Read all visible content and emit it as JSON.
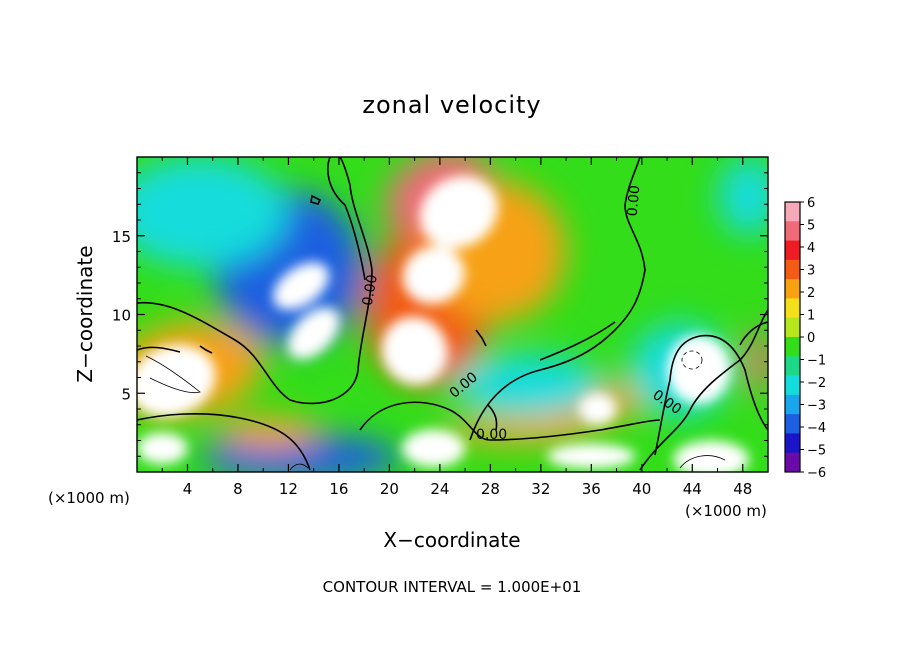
{
  "chart_data": {
    "type": "heatmap",
    "title": "zonal velocity",
    "xlabel": "X−coordinate",
    "ylabel": "Z−coordinate",
    "x_units_left": "(×1000 m)",
    "x_units_right": "(×1000 m)",
    "footer": "CONTOUR INTERVAL = 1.000E+01",
    "xlim": [
      0,
      50
    ],
    "ylim": [
      0,
      20
    ],
    "x_ticks": [
      4,
      8,
      12,
      16,
      20,
      24,
      28,
      32,
      36,
      40,
      44,
      48
    ],
    "x_tick_labels": [
      "4",
      "8",
      "12",
      "16",
      "20",
      "24",
      "28",
      "32",
      "36",
      "40",
      "44",
      "48"
    ],
    "y_ticks": [
      5,
      10,
      15
    ],
    "y_tick_labels": [
      "5",
      "10",
      "15"
    ],
    "colorbar": {
      "min": -6,
      "max": 6,
      "ticks": [
        6,
        5,
        4,
        3,
        2,
        1,
        0,
        -1,
        -2,
        -3,
        -4,
        -5,
        -6
      ],
      "labels": [
        "6",
        "5",
        "4",
        "3",
        "2",
        "1",
        "0",
        "−1",
        "−2",
        "−3",
        "−4",
        "−5",
        "−6"
      ],
      "colors": [
        "#f4a8b8",
        "#f06a7a",
        "#ee1c24",
        "#f25c18",
        "#f7a113",
        "#f3df1a",
        "#b5e51d",
        "#33dd1a",
        "#1ed88a",
        "#14dcdc",
        "#1aa6ec",
        "#1e5ee0",
        "#1c14c8",
        "#6a0aa8"
      ]
    },
    "contour_labels": [
      {
        "text": "0.00",
        "x": 18.8,
        "z": 11.5,
        "rotate": -80
      },
      {
        "text": "0.00",
        "x": 26.1,
        "z": 5.3,
        "rotate": -40
      },
      {
        "text": "0.00",
        "x": 28.1,
        "z": 2.1,
        "rotate": 0
      },
      {
        "text": "0.00",
        "x": 41.8,
        "z": 4.2,
        "rotate": 35
      },
      {
        "text": "0.00",
        "x": 39.7,
        "z": 17.2,
        "rotate": -85
      }
    ],
    "features": [
      {
        "type": "blob",
        "x": 25.5,
        "z": 16.5,
        "rx": 3.2,
        "rz": 2.2,
        "angle": 30,
        "value": 6.5
      },
      {
        "type": "blob",
        "x": 24.0,
        "z": 17.5,
        "rx": 4.5,
        "rz": 2.8,
        "angle": 30,
        "value": 4.5
      },
      {
        "type": "blob",
        "x": 23.5,
        "z": 12.5,
        "rx": 2.5,
        "rz": 1.8,
        "angle": 20,
        "value": 6.5
      },
      {
        "type": "blob",
        "x": 22.0,
        "z": 7.7,
        "rx": 2.6,
        "rz": 2.2,
        "angle": 30,
        "value": 6.5
      },
      {
        "type": "blob",
        "x": 23.0,
        "z": 10.5,
        "rx": 5.0,
        "rz": 5.0,
        "angle": 0,
        "value": 3.2
      },
      {
        "type": "blob",
        "x": 28.5,
        "z": 14.0,
        "rx": 5.5,
        "rz": 4.5,
        "angle": 0,
        "value": 2.5
      },
      {
        "type": "blob",
        "x": 13.0,
        "z": 11.8,
        "rx": 2.5,
        "rz": 1.2,
        "angle": 35,
        "value": -6.5
      },
      {
        "type": "blob",
        "x": 14.0,
        "z": 8.8,
        "rx": 2.5,
        "rz": 1.2,
        "angle": 45,
        "value": -6.5
      },
      {
        "type": "blob",
        "x": 12.0,
        "z": 13.0,
        "rx": 6.0,
        "rz": 5.0,
        "angle": 30,
        "value": -3.5
      },
      {
        "type": "blob",
        "x": 5.0,
        "z": 16.5,
        "rx": 7.0,
        "rz": 3.5,
        "angle": 0,
        "value": -2.5
      },
      {
        "type": "blob",
        "x": 2.8,
        "z": 5.8,
        "rx": 3.5,
        "rz": 2.2,
        "angle": 20,
        "value": 6.5
      },
      {
        "type": "blob",
        "x": 4.0,
        "z": 6.5,
        "rx": 6.0,
        "rz": 3.0,
        "angle": 10,
        "value": 2.5
      },
      {
        "type": "blob",
        "x": 44.5,
        "z": 6.5,
        "rx": 2.5,
        "rz": 2.2,
        "angle": 0,
        "value": -6.5
      },
      {
        "type": "blob",
        "x": 43.0,
        "z": 6.5,
        "rx": 4.0,
        "rz": 3.0,
        "angle": 0,
        "value": -2.5
      },
      {
        "type": "blob",
        "x": 36.5,
        "z": 4.0,
        "rx": 1.5,
        "rz": 1.0,
        "angle": 0,
        "value": 6.5
      },
      {
        "type": "blob",
        "x": 35.0,
        "z": 4.5,
        "rx": 5.0,
        "rz": 1.5,
        "angle": 0,
        "value": 2.5
      },
      {
        "type": "blob",
        "x": 31.0,
        "z": 5.5,
        "rx": 6.0,
        "rz": 2.0,
        "angle": 0,
        "value": -2.5
      },
      {
        "type": "blob",
        "x": 13.0,
        "z": 0.9,
        "rx": 8.0,
        "rz": 1.5,
        "angle": 0,
        "value": -4.0
      },
      {
        "type": "blob",
        "x": 23.5,
        "z": 1.5,
        "rx": 2.5,
        "rz": 1.2,
        "angle": 0,
        "value": -6.5
      },
      {
        "type": "blob",
        "x": 2.0,
        "z": 1.5,
        "rx": 2.0,
        "rz": 1.0,
        "angle": 0,
        "value": -6.5
      },
      {
        "type": "blob",
        "x": 36.0,
        "z": 1.0,
        "rx": 3.5,
        "rz": 0.8,
        "angle": 0,
        "value": -6.5
      },
      {
        "type": "blob",
        "x": 45.5,
        "z": 0.8,
        "rx": 3.0,
        "rz": 1.2,
        "angle": 0,
        "value": -6.5
      },
      {
        "type": "blob",
        "x": 48.5,
        "z": 17.5,
        "rx": 2.5,
        "rz": 2.5,
        "angle": 0,
        "value": -2.5
      },
      {
        "type": "blob",
        "x": 49.3,
        "z": 7.0,
        "rx": 1.0,
        "rz": 2.0,
        "angle": 0,
        "value": 5.0
      },
      {
        "type": "blob",
        "x": 30.0,
        "z": 2.6,
        "rx": 6.0,
        "rz": 0.8,
        "angle": 0,
        "value": 2.0
      },
      {
        "type": "blob",
        "x": 10.5,
        "z": 2.5,
        "rx": 4.0,
        "rz": 1.0,
        "angle": 0,
        "value": 2.5
      }
    ]
  }
}
